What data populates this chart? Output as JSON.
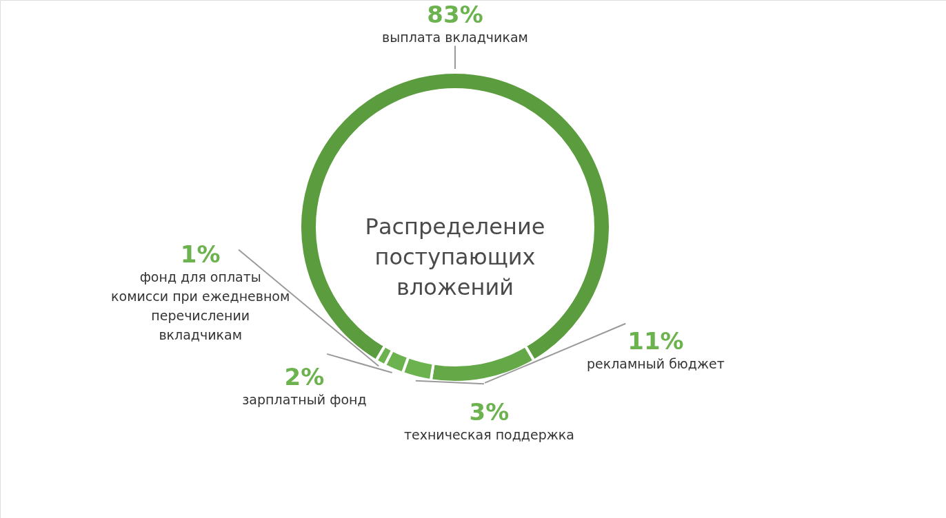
{
  "chart_data": {
    "type": "donut",
    "title": "Распределение поступающих вложений",
    "categories": [
      "выплата вкладчикам",
      "рекламный бюджет",
      "техническая поддержка",
      "зарплатный фонд",
      "фонд для оплаты комисси при ежедневном перечислении вкладчикам"
    ],
    "values": [
      83,
      11,
      3,
      2,
      1
    ],
    "value_labels": [
      "83%",
      "11%",
      "3%",
      "2%",
      "1%"
    ],
    "colors": [
      "#5a9c3e",
      "#64a848",
      "#6cb24f",
      "#6cb24f",
      "#6cb24f"
    ]
  }
}
